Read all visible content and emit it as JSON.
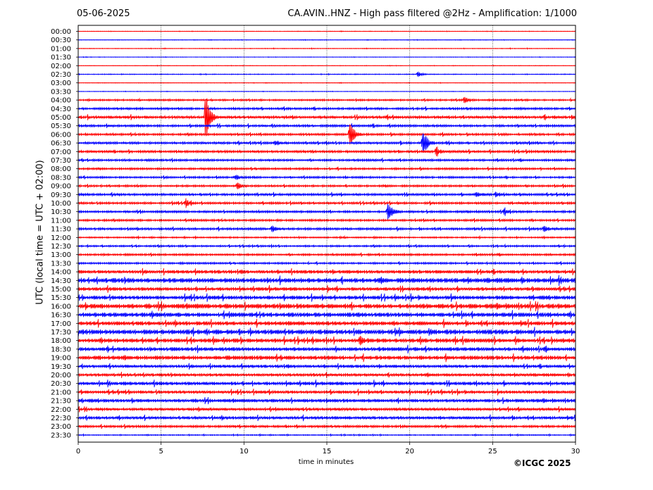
{
  "header": {
    "date": "05-06-2025",
    "title": "CA.AVIN..HNZ - High pass filtered @2Hz - Amplification: 1/1000"
  },
  "footer": {
    "copyright": "©ICGC 2025"
  },
  "chart_data": {
    "type": "seismogram",
    "ylabel": "UTC (local time = UTC + 02:00)",
    "xlabel": "time in minutes",
    "xlim": [
      0,
      30
    ],
    "xticks": [
      0,
      5,
      10,
      15,
      20,
      25,
      30
    ],
    "xtick_labels": [
      "0",
      "5",
      "10",
      "15",
      "20",
      "25",
      "30"
    ],
    "vertical_grid_minutes": [
      5,
      10,
      15,
      20,
      25
    ],
    "trace_colors": [
      "#ff0000",
      "#0000ff"
    ],
    "rows": [
      "00:00",
      "00:30",
      "01:00",
      "01:30",
      "02:00",
      "02:30",
      "03:00",
      "03:30",
      "04:00",
      "04:30",
      "05:00",
      "05:30",
      "06:00",
      "06:30",
      "07:00",
      "07:30",
      "08:00",
      "08:30",
      "09:00",
      "09:30",
      "10:00",
      "10:30",
      "11:00",
      "11:30",
      "12:00",
      "12:30",
      "13:00",
      "13:30",
      "14:00",
      "14:30",
      "15:00",
      "15:30",
      "16:00",
      "16:30",
      "17:00",
      "17:30",
      "18:00",
      "18:30",
      "19:00",
      "19:30",
      "20:00",
      "20:30",
      "21:00",
      "21:30",
      "22:00",
      "22:30",
      "23:00",
      "23:30"
    ],
    "row_colors": [
      "#ff0000",
      "#0000ff",
      "#ff0000",
      "#0000ff",
      "#ff0000",
      "#0000ff",
      "#ff0000",
      "#0000ff",
      "#ff0000",
      "#0000ff",
      "#ff0000",
      "#0000ff",
      "#ff0000",
      "#0000ff",
      "#ff0000",
      "#0000ff",
      "#ff0000",
      "#0000ff",
      "#ff0000",
      "#0000ff",
      "#ff0000",
      "#0000ff",
      "#ff0000",
      "#0000ff",
      "#ff0000",
      "#0000ff",
      "#ff0000",
      "#0000ff",
      "#ff0000",
      "#0000ff",
      "#ff0000",
      "#0000ff",
      "#ff0000",
      "#0000ff",
      "#ff0000",
      "#0000ff",
      "#ff0000",
      "#0000ff",
      "#ff0000",
      "#0000ff",
      "#ff0000",
      "#0000ff",
      "#ff0000",
      "#0000ff",
      "#ff0000",
      "#0000ff",
      "#ff0000",
      "#0000ff"
    ],
    "noise_level": [
      0.3,
      0.3,
      0.4,
      0.3,
      0.3,
      0.5,
      0.3,
      0.3,
      1.2,
      1.5,
      2.0,
      1.6,
      1.5,
      1.6,
      1.7,
      1.5,
      1.4,
      1.3,
      1.4,
      1.6,
      1.5,
      1.5,
      1.4,
      1.6,
      1.0,
      1.2,
      1.4,
      1.3,
      2.5,
      3.5,
      2.5,
      2.8,
      3.5,
      3.2,
      3.0,
      3.5,
      3.0,
      2.8,
      3.0,
      2.2,
      2.2,
      2.5,
      2.2,
      2.5,
      2.0,
      2.2,
      1.6,
      0.7
    ],
    "events": [
      {
        "row": 5,
        "minute": 20.5,
        "amplitude": 4
      },
      {
        "row": 8,
        "minute": 23.3,
        "amplitude": 5
      },
      {
        "row": 10,
        "minute": 7.7,
        "amplitude": 40
      },
      {
        "row": 12,
        "minute": 16.4,
        "amplitude": 22
      },
      {
        "row": 13,
        "minute": 20.8,
        "amplitude": 22
      },
      {
        "row": 13,
        "minute": 11.9,
        "amplitude": 4
      },
      {
        "row": 14,
        "minute": 21.6,
        "amplitude": 6
      },
      {
        "row": 17,
        "minute": 9.5,
        "amplitude": 4
      },
      {
        "row": 18,
        "minute": 9.6,
        "amplitude": 5
      },
      {
        "row": 19,
        "minute": 24.0,
        "amplitude": 4
      },
      {
        "row": 19,
        "minute": 25.2,
        "amplitude": 4
      },
      {
        "row": 20,
        "minute": 6.5,
        "amplitude": 5
      },
      {
        "row": 21,
        "minute": 18.7,
        "amplitude": 17
      },
      {
        "row": 21,
        "minute": 25.7,
        "amplitude": 4
      },
      {
        "row": 23,
        "minute": 11.7,
        "amplitude": 5
      },
      {
        "row": 23,
        "minute": 28.1,
        "amplitude": 4
      },
      {
        "row": 36,
        "minute": 17.0,
        "amplitude": 6
      }
    ]
  }
}
